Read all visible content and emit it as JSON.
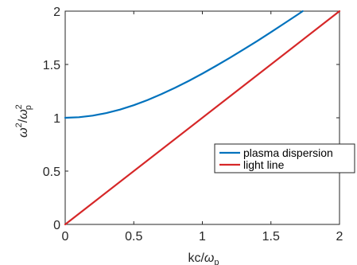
{
  "chart_data": {
    "type": "line",
    "title": "",
    "xlabel": {
      "base": "kc/",
      "symbol": "ω",
      "sub": "p"
    },
    "ylabel": {
      "symbol1": "ω",
      "sup1": "2",
      "slash": "/",
      "symbol2": "ω",
      "sup2": "2",
      "sub2": "p"
    },
    "xlim": [
      0,
      2
    ],
    "ylim": [
      0,
      2
    ],
    "xticks": [
      0,
      0.5,
      1,
      1.5,
      2
    ],
    "xtick_labels": [
      "0",
      "0.5",
      "1",
      "1.5",
      "2"
    ],
    "yticks": [
      0,
      0.5,
      1,
      1.5,
      2
    ],
    "ytick_labels": [
      "0",
      "0.5",
      "1",
      "1.5",
      "2"
    ],
    "grid": false,
    "legend_position": "right-middle",
    "series": [
      {
        "name": "plasma dispersion",
        "color": "#0072BD",
        "x": [
          0,
          0.1,
          0.2,
          0.3,
          0.4,
          0.5,
          0.6,
          0.7,
          0.8,
          0.9,
          1.0,
          1.1,
          1.2,
          1.3,
          1.4,
          1.5,
          1.6,
          1.7,
          1.732
        ],
        "y": [
          1.0,
          1.005,
          1.02,
          1.044,
          1.077,
          1.118,
          1.166,
          1.221,
          1.281,
          1.345,
          1.414,
          1.487,
          1.562,
          1.64,
          1.72,
          1.803,
          1.887,
          1.972,
          2.0
        ]
      },
      {
        "name": "light line",
        "color": "#D62728",
        "x": [
          0,
          2
        ],
        "y": [
          0,
          2
        ]
      }
    ]
  }
}
